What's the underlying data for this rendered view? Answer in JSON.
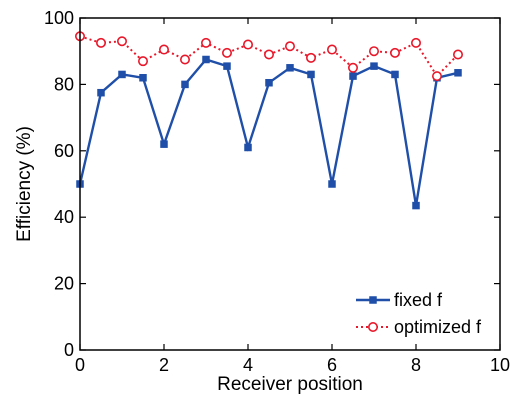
{
  "chart_data": {
    "type": "line",
    "title": "",
    "xlabel": "Receiver position",
    "ylabel": "Efficiency (%)",
    "xlim": [
      0,
      10
    ],
    "ylim": [
      0,
      100
    ],
    "xticks": [
      0,
      2,
      4,
      6,
      8,
      10
    ],
    "yticks": [
      0,
      20,
      40,
      60,
      80,
      100
    ],
    "grid": false,
    "legend_position": "bottom-right",
    "x": [
      0,
      0.5,
      1,
      1.5,
      2,
      2.5,
      3,
      3.5,
      4,
      4.5,
      5,
      5.5,
      6,
      6.5,
      7,
      7.5,
      8,
      8.5,
      9
    ],
    "series": [
      {
        "name": "fixed f",
        "color": "#1f4fa8",
        "line_style": "solid",
        "marker": "filled-square",
        "values": [
          50,
          77.5,
          83,
          82,
          62,
          80,
          87.5,
          85.5,
          61,
          80.5,
          85,
          83,
          50,
          82.5,
          85.5,
          83,
          43.5,
          82,
          83.5
        ]
      },
      {
        "name": "optimized f",
        "color": "#e8182a",
        "line_style": "dotted",
        "marker": "open-circle",
        "values": [
          94.5,
          92.5,
          93,
          87,
          90.5,
          87.5,
          92.5,
          89.5,
          92,
          89,
          91.5,
          88,
          90.5,
          85,
          90,
          89.5,
          92.5,
          82.5,
          89
        ]
      }
    ]
  }
}
